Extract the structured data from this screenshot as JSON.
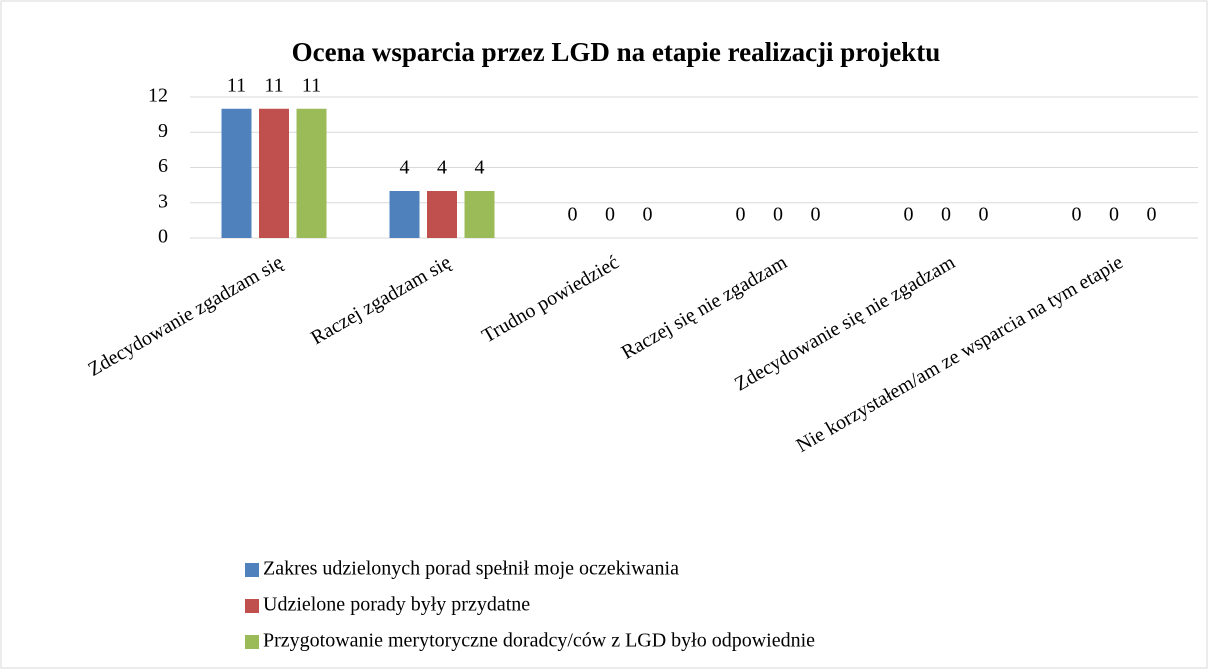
{
  "chart_data": {
    "type": "bar",
    "title": "Ocena wsparcia przez LGD na etapie realizacji projektu",
    "categories": [
      "Zdecydowanie zgadzam się",
      "Raczej zgadzam się",
      "Trudno powiedzieć",
      "Raczej się nie zgadzam",
      "Zdecydowanie się nie zgadzam",
      "Nie korzystałem/am ze wsparcia na tym etapie"
    ],
    "series": [
      {
        "name": "Zakres udzielonych porad spełnił moje oczekiwania",
        "color": "#4f81bd",
        "values": [
          11,
          4,
          0,
          0,
          0,
          0
        ]
      },
      {
        "name": "Udzielone porady były przydatne",
        "color": "#c0504d",
        "values": [
          11,
          4,
          0,
          0,
          0,
          0
        ]
      },
      {
        "name": "Przygotowanie merytoryczne doradcy/ców z LGD było odpowiednie",
        "color": "#9bbb59",
        "values": [
          11,
          4,
          0,
          0,
          0,
          0
        ]
      }
    ],
    "ylim": [
      0,
      12
    ],
    "yticks": [
      0,
      3,
      6,
      9,
      12
    ],
    "grid": true,
    "legend": "bottom"
  }
}
